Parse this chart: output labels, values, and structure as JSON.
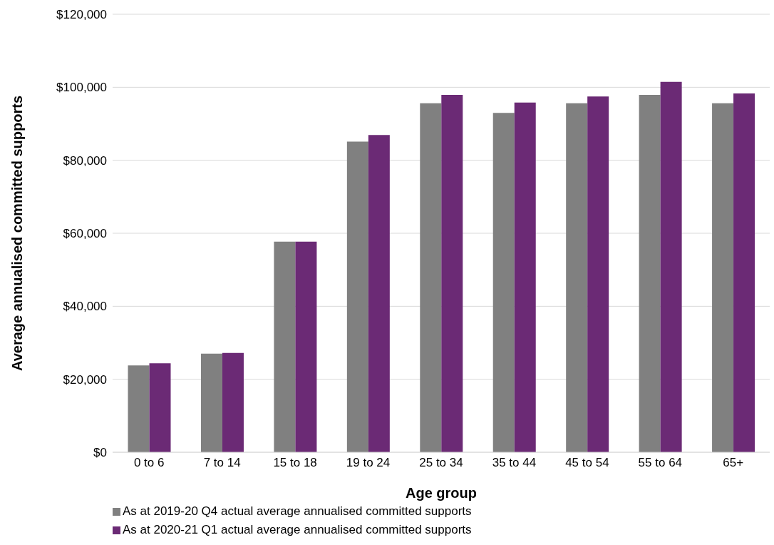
{
  "chart_data": {
    "type": "bar",
    "xlabel": "Age group",
    "ylabel": "Average annualised committed supports",
    "categories": [
      "0 to 6",
      "7 to 14",
      "15 to 18",
      "19 to 24",
      "25 to 34",
      "35 to 44",
      "45 to 54",
      "55 to 64",
      "65+"
    ],
    "series": [
      {
        "name": "As at 2019-20 Q4 actual average annualised committed supports",
        "color": "#808080",
        "values": [
          23800,
          27000,
          57700,
          85100,
          95600,
          93000,
          95600,
          97900,
          95600
        ]
      },
      {
        "name": "As at 2020-21 Q1 actual average annualised committed supports",
        "color": "#6b2a75",
        "values": [
          24400,
          27200,
          57700,
          86900,
          97900,
          95800,
          97500,
          101500,
          98300
        ]
      }
    ],
    "ylim": [
      0,
      120000
    ],
    "yticks": [
      {
        "value": 0,
        "label": "$0"
      },
      {
        "value": 20000,
        "label": "$20,000"
      },
      {
        "value": 40000,
        "label": "$40,000"
      },
      {
        "value": 60000,
        "label": "$60,000"
      },
      {
        "value": 80000,
        "label": "$80,000"
      },
      {
        "value": 100000,
        "label": "$100,000"
      },
      {
        "value": 120000,
        "label": "$120,000"
      }
    ],
    "grid": "y",
    "legend": "bottom"
  }
}
